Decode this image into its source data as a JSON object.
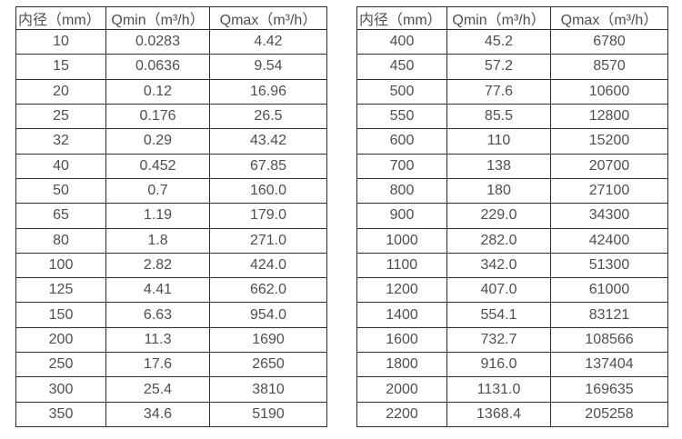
{
  "colors": {
    "border": "#2e2e2e",
    "text": "#4f4f4f",
    "background": "#ffffff"
  },
  "tables": [
    {
      "name": "small-diameter-flow-ranges",
      "headers": [
        "内径（mm）",
        "Qmin（m³/h）",
        "Qmax（m³/h）"
      ],
      "rows": [
        [
          "10",
          "0.0283",
          "4.42"
        ],
        [
          "15",
          "0.0636",
          "9.54"
        ],
        [
          "20",
          "0.12",
          "16.96"
        ],
        [
          "25",
          "0.176",
          "26.5"
        ],
        [
          "32",
          "0.29",
          "43.42"
        ],
        [
          "40",
          "0.452",
          "67.85"
        ],
        [
          "50",
          "0.7",
          "160.0"
        ],
        [
          "65",
          "1.19",
          "179.0"
        ],
        [
          "80",
          "1.8",
          "271.0"
        ],
        [
          "100",
          "2.82",
          "424.0"
        ],
        [
          "125",
          "4.41",
          "662.0"
        ],
        [
          "150",
          "6.63",
          "954.0"
        ],
        [
          "200",
          "11.3",
          "1690"
        ],
        [
          "250",
          "17.6",
          "2650"
        ],
        [
          "300",
          "25.4",
          "3810"
        ],
        [
          "350",
          "34.6",
          "5190"
        ]
      ]
    },
    {
      "name": "large-diameter-flow-ranges",
      "headers": [
        "内径（mm）",
        "Qmin（m³/h）",
        "Qmax（m³/h）"
      ],
      "rows": [
        [
          "400",
          "45.2",
          "6780"
        ],
        [
          "450",
          "57.2",
          "8570"
        ],
        [
          "500",
          "77.6",
          "10600"
        ],
        [
          "550",
          "85.5",
          "12800"
        ],
        [
          "600",
          "110",
          "15200"
        ],
        [
          "700",
          "138",
          "20700"
        ],
        [
          "800",
          "180",
          "27100"
        ],
        [
          "900",
          "229.0",
          "34300"
        ],
        [
          "1000",
          "282.0",
          "42400"
        ],
        [
          "1100",
          "342.0",
          "51300"
        ],
        [
          "1200",
          "407.0",
          "61000"
        ],
        [
          "1400",
          "554.1",
          "83121"
        ],
        [
          "1600",
          "732.7",
          "108566"
        ],
        [
          "1800",
          "916.0",
          "137404"
        ],
        [
          "2000",
          "1131.0",
          "169635"
        ],
        [
          "2200",
          "1368.4",
          "205258"
        ]
      ]
    }
  ]
}
